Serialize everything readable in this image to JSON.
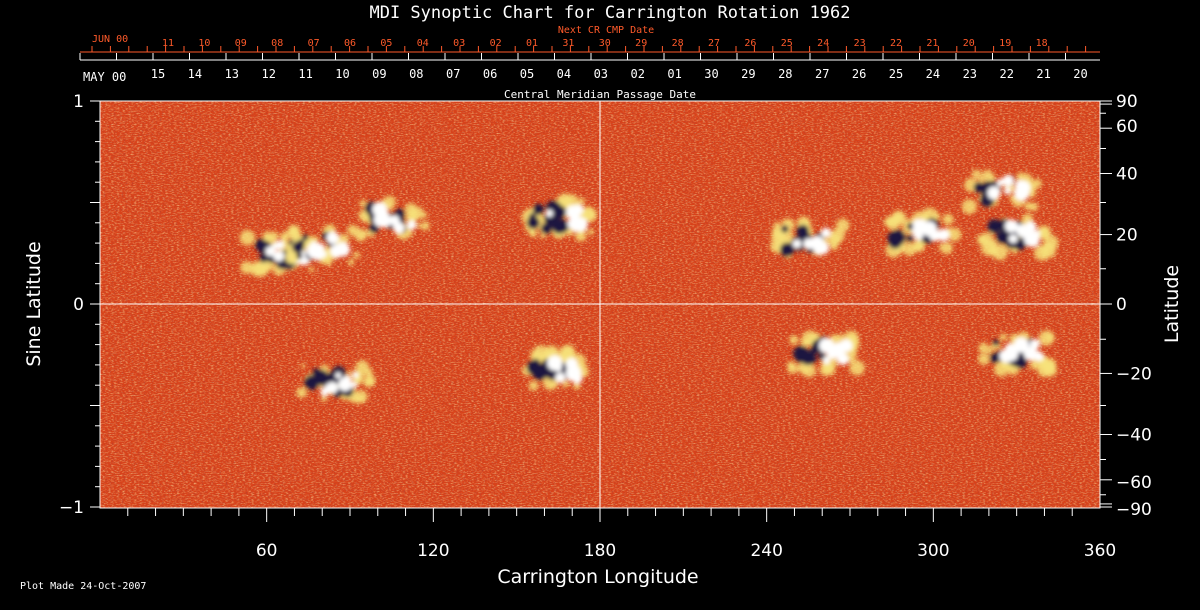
{
  "chart_data": {
    "type": "heatmap",
    "title": "MDI Synoptic Chart for Carrington Rotation 1962",
    "xlabel": "Carrington Longitude",
    "ylabel_left": "Sine Latitude",
    "ylabel_right": "Latitude",
    "xlim": [
      0,
      360
    ],
    "ylim": [
      -1,
      1
    ],
    "x_ticks": [
      "60",
      "120",
      "180",
      "240",
      "300",
      "360"
    ],
    "y_left_ticks": [
      "1",
      "0",
      "−1"
    ],
    "y_right_ticks": [
      "90",
      "60",
      "40",
      "20",
      "0",
      "−20",
      "−40",
      "−60",
      "−90"
    ],
    "top_axis_label": "Central Meridian Passage Date",
    "top_month_label": "MAY 00",
    "top_dates": [
      "15",
      "14",
      "13",
      "12",
      "11",
      "10",
      "09",
      "08",
      "07",
      "06",
      "05",
      "04",
      "03",
      "02",
      "01",
      "30",
      "29",
      "28",
      "27",
      "26",
      "25",
      "24",
      "23",
      "22",
      "21",
      "20"
    ],
    "next_axis_label": "Next CR CMP Date",
    "next_month_label": "JUN 00",
    "next_dates": [
      "11",
      "10",
      "09",
      "08",
      "07",
      "06",
      "05",
      "04",
      "03",
      "02",
      "01",
      "31",
      "30",
      "29",
      "28",
      "27",
      "26",
      "25",
      "24",
      "23",
      "22",
      "21",
      "20",
      "19",
      "18"
    ],
    "grid": "center cross at longitude 180 and sine latitude 0",
    "colormap": "red-orange-yellow (positive white, negative dark blue)",
    "regions": [
      {
        "lon": 65,
        "lat": 0.25,
        "polarity": "bipolar"
      },
      {
        "lon": 80,
        "lat": 0.28,
        "polarity": "bipolar"
      },
      {
        "lon": 105,
        "lat": 0.42,
        "polarity": "mixed"
      },
      {
        "lon": 165,
        "lat": 0.42,
        "polarity": "mixed"
      },
      {
        "lon": 255,
        "lat": 0.32,
        "polarity": "bipolar"
      },
      {
        "lon": 295,
        "lat": 0.35,
        "polarity": "mixed"
      },
      {
        "lon": 325,
        "lat": 0.56,
        "polarity": "bipolar"
      },
      {
        "lon": 330,
        "lat": 0.34,
        "polarity": "bipolar"
      },
      {
        "lon": 85,
        "lat": -0.39,
        "polarity": "bipolar"
      },
      {
        "lon": 165,
        "lat": -0.32,
        "polarity": "bipolar"
      },
      {
        "lon": 260,
        "lat": -0.24,
        "polarity": "bipolar"
      },
      {
        "lon": 330,
        "lat": -0.24,
        "polarity": "mixed"
      }
    ]
  },
  "footer": {
    "plot_made": "Plot Made 24-Oct-2007"
  },
  "colors": {
    "background": "#000000",
    "field_base": "#d8421a",
    "next_axis": "#ff5a2a",
    "positive": "#ffffff",
    "negative": "#1a1440"
  }
}
